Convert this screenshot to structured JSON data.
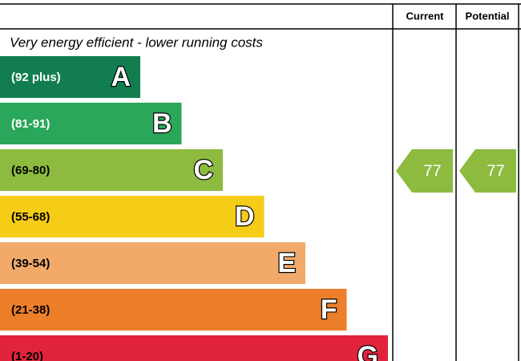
{
  "header": {
    "current": "Current",
    "potential": "Potential"
  },
  "subtitle": "Very energy efficient - lower running costs",
  "bands": [
    {
      "range": "(92 plus)",
      "letter": "A",
      "color": "#127e4f",
      "text_color": "#ffffff"
    },
    {
      "range": "(81-91)",
      "letter": "B",
      "color": "#2aa75a",
      "text_color": "#ffffff"
    },
    {
      "range": "(69-80)",
      "letter": "C",
      "color": "#8dbb40",
      "text_color": "#000000"
    },
    {
      "range": "(55-68)",
      "letter": "D",
      "color": "#f5cc16",
      "text_color": "#000000"
    },
    {
      "range": "(39-54)",
      "letter": "E",
      "color": "#f2aa6b",
      "text_color": "#000000"
    },
    {
      "range": "(21-38)",
      "letter": "F",
      "color": "#ee7f2a",
      "text_color": "#000000"
    },
    {
      "range": "(1-20)",
      "letter": "G",
      "color": "#e2233c",
      "text_color": "#000000"
    }
  ],
  "current": {
    "value": "77",
    "band": "C"
  },
  "potential": {
    "value": "77",
    "band": "C"
  }
}
